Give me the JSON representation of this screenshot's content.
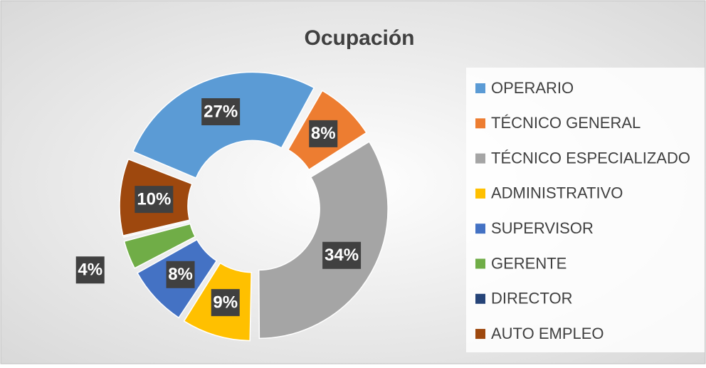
{
  "chart_data": {
    "type": "pie",
    "title": "Ocupación",
    "categories": [
      "OPERARIO",
      "TÉCNICO GENERAL",
      "TÉCNICO ESPECIALIZADO",
      "ADMINISTRATIVO",
      "SUPERVISOR",
      "GERENTE",
      "DIRECTOR",
      "AUTO EMPLEO"
    ],
    "values": [
      27,
      8,
      34,
      9,
      8,
      4,
      0,
      10
    ],
    "value_labels": [
      "27%",
      "8%",
      "34%",
      "9%",
      "8%",
      "4%",
      null,
      "10%"
    ],
    "colors": [
      "#5B9BD5",
      "#ED7D31",
      "#A5A5A5",
      "#FFC000",
      "#4472C4",
      "#70AD47",
      "#264478",
      "#9E480E"
    ],
    "legend": "right"
  }
}
